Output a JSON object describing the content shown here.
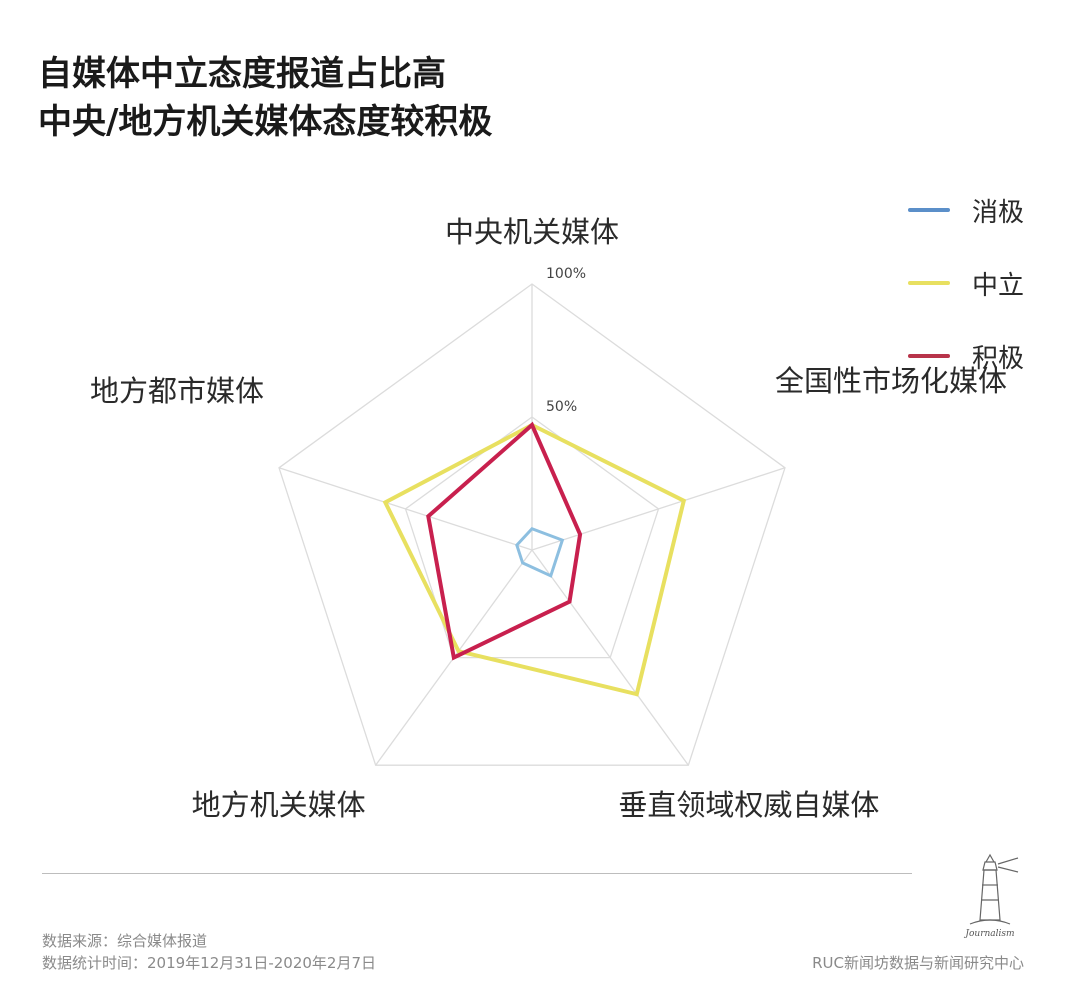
{
  "title": {
    "line1": "自媒体中立态度报道占比高",
    "line2": "中央/地方机关媒体态度较积极"
  },
  "legend": [
    {
      "label": "消极",
      "color": "#5b8fc9"
    },
    {
      "label": "中立",
      "color": "#e8e060"
    },
    {
      "label": "积极",
      "color": "#b8344a"
    }
  ],
  "chart_data": {
    "type": "radar",
    "axes": [
      "中央机关媒体",
      "全国性市场化媒体",
      "垂直领域权威自媒体",
      "地方机关媒体",
      "地方都市媒体"
    ],
    "tick_labels": [
      "50%",
      "100%"
    ],
    "rmax": 100,
    "series": [
      {
        "name": "消极",
        "color": "#8dbfe0",
        "values": [
          8,
          12,
          12,
          6,
          6
        ]
      },
      {
        "name": "中立",
        "color": "#e8e060",
        "values": [
          47,
          60,
          67,
          47,
          58
        ]
      },
      {
        "name": "积极",
        "color": "#c8204e",
        "values": [
          47,
          19,
          24,
          50,
          41
        ]
      }
    ]
  },
  "footer": {
    "source_line1": "数据来源：综合媒体报道",
    "source_line2": "数据统计时间：2019年12月31日-2020年2月7日",
    "brand": "RUC新闻坊数据与新闻研究中心",
    "logo_text": "Journalism"
  }
}
